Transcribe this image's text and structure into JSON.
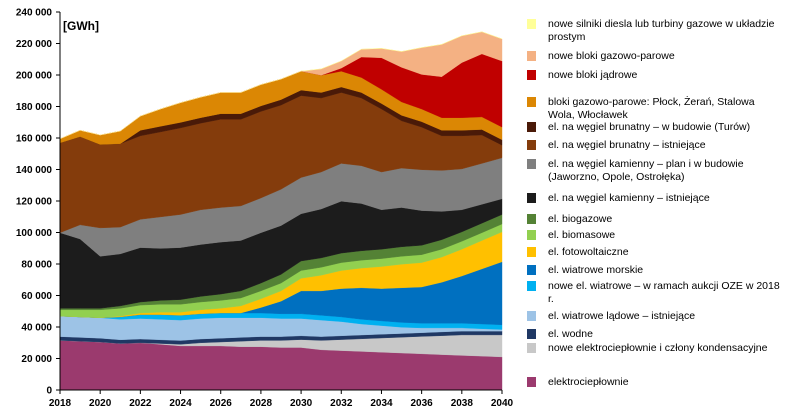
{
  "chart_data": {
    "type": "area",
    "stacked": true,
    "unit_label": "[GWh]",
    "x": [
      2018,
      2019,
      2020,
      2021,
      2022,
      2023,
      2024,
      2025,
      2026,
      2027,
      2028,
      2029,
      2030,
      2031,
      2032,
      2033,
      2034,
      2035,
      2036,
      2037,
      2038,
      2039,
      2040
    ],
    "x_ticks": [
      2018,
      2020,
      2022,
      2024,
      2026,
      2028,
      2030,
      2032,
      2034,
      2036,
      2038,
      2040
    ],
    "ylim": [
      0,
      240000
    ],
    "y_ticks": [
      0,
      20000,
      40000,
      60000,
      80000,
      100000,
      120000,
      140000,
      160000,
      180000,
      200000,
      220000,
      240000
    ],
    "y_tick_labels": [
      "0",
      "20 000",
      "40 000",
      "60 000",
      "80 000",
      "100 000",
      "120 000",
      "140 000",
      "160 000",
      "180 000",
      "200 000",
      "220 000",
      "240 000"
    ],
    "grid": false,
    "legend_position": "right",
    "series": [
      {
        "name": "elektrociepłownie",
        "color": "#9B3A6E",
        "values": [
          31500,
          31000,
          30500,
          29500,
          30000,
          29000,
          28000,
          28000,
          28000,
          27500,
          27500,
          27000,
          27000,
          25500,
          25000,
          24500,
          24000,
          23500,
          23000,
          22500,
          22000,
          21500,
          21000
        ]
      },
      {
        "name": "nowe elektrociepłownie i człony kondensacyjne",
        "color": "#C8C8C8",
        "values": [
          0,
          0,
          0,
          0,
          0,
          500,
          1000,
          2000,
          2500,
          3500,
          4000,
          4500,
          5000,
          6000,
          7000,
          8000,
          9000,
          10000,
          11000,
          12000,
          13000,
          13500,
          14000
        ]
      },
      {
        "name": "el. wodne",
        "color": "#1F3864",
        "values": [
          2400,
          2400,
          2400,
          2400,
          2400,
          2400,
          2400,
          2400,
          2400,
          2400,
          2400,
          2400,
          2400,
          2400,
          2400,
          2400,
          2400,
          2400,
          2400,
          2400,
          2400,
          2400,
          2400
        ]
      },
      {
        "name": "el. wiatrowe lądowe – istniejące",
        "color": "#9DC3E6",
        "values": [
          13000,
          13000,
          13000,
          13000,
          13000,
          13000,
          13000,
          13000,
          13000,
          12500,
          12000,
          11500,
          11000,
          10500,
          9000,
          7000,
          5500,
          4000,
          3000,
          2500,
          2000,
          1500,
          1000
        ]
      },
      {
        "name": "nowe el. wiatrowe – w ramach aukcji OZE w 2018 r.",
        "color": "#00B0F0",
        "values": [
          0,
          0,
          0,
          1500,
          2500,
          3000,
          3000,
          3000,
          3000,
          3000,
          3000,
          3000,
          3000,
          3000,
          3000,
          3000,
          3000,
          3000,
          3000,
          3000,
          3000,
          3000,
          3000
        ]
      },
      {
        "name": "el. wiatrowe morskie",
        "color": "#0070C0",
        "values": [
          0,
          0,
          0,
          0,
          0,
          0,
          0,
          0,
          0,
          0,
          3500,
          8000,
          14500,
          15500,
          18000,
          20000,
          20500,
          22000,
          23000,
          26000,
          30000,
          35000,
          40000
        ]
      },
      {
        "name": "el. fotowoltaiczne",
        "color": "#FFC000",
        "values": [
          0,
          0,
          0,
          500,
          1000,
          1500,
          2000,
          2500,
          3000,
          4500,
          5500,
          6500,
          8000,
          10000,
          11500,
          12500,
          14000,
          15000,
          15500,
          16000,
          17000,
          18000,
          19000
        ]
      },
      {
        "name": "el. biomasowe",
        "color": "#92D050",
        "values": [
          4000,
          4500,
          5000,
          5000,
          5000,
          5000,
          5000,
          5000,
          5000,
          5000,
          5000,
          5000,
          5000,
          5000,
          5000,
          5000,
          5000,
          5000,
          5000,
          5000,
          5000,
          5000,
          5000
        ]
      },
      {
        "name": "el. biogazowe",
        "color": "#548235",
        "values": [
          1000,
          1000,
          1000,
          1500,
          2000,
          2500,
          3000,
          3500,
          4000,
          4500,
          5000,
          5500,
          6000,
          6000,
          6000,
          6000,
          6000,
          6000,
          6000,
          6000,
          6000,
          6000,
          6000
        ]
      },
      {
        "name": "el. na węgiel kamienny – istniejące",
        "color": "#1C1C1C",
        "values": [
          48000,
          44000,
          33000,
          33000,
          34500,
          33000,
          33000,
          33000,
          33000,
          32000,
          32000,
          31000,
          30000,
          31000,
          33000,
          30000,
          25000,
          25000,
          22000,
          18000,
          14000,
          12000,
          10000
        ]
      },
      {
        "name": "el. na węgiel kamienny – plan i w budowie (Jaworzno, Opole, Ostrołęka)",
        "color": "#7F7F7F",
        "values": [
          0,
          9000,
          18000,
          17000,
          18000,
          20000,
          21000,
          22000,
          22000,
          22000,
          22000,
          23000,
          23000,
          23500,
          24000,
          24000,
          24000,
          25000,
          26000,
          26000,
          26000,
          26000,
          26000
        ]
      },
      {
        "name": "el. na węgiel brunatny – istniejące",
        "color": "#843C0C",
        "values": [
          57000,
          56000,
          53000,
          53000,
          53000,
          54000,
          55000,
          55000,
          56000,
          55000,
          55000,
          53500,
          52000,
          47000,
          45000,
          43000,
          40000,
          30000,
          27000,
          22000,
          21000,
          18000,
          8000
        ]
      },
      {
        "name": "el. na węgiel brunatny – w budowie (Turów)",
        "color": "#4A1A08",
        "values": [
          0,
          0,
          0,
          0,
          3500,
          3500,
          3500,
          3500,
          3500,
          3500,
          3500,
          3500,
          3500,
          3500,
          3500,
          3500,
          3500,
          3500,
          3500,
          3500,
          3500,
          3500,
          3500
        ]
      },
      {
        "name": "bloki gazowo-parowe: Płock, Żerań, Stalowa Wola, Włocławek",
        "color": "#DB8704",
        "values": [
          2600,
          4000,
          6000,
          8000,
          9000,
          11000,
          12500,
          13000,
          13500,
          13500,
          13500,
          13000,
          12000,
          11000,
          10000,
          9500,
          9000,
          8500,
          8000,
          8000,
          8000,
          8000,
          8000
        ]
      },
      {
        "name": "nowe bloki jądrowe",
        "color": "#C00000",
        "values": [
          0,
          0,
          0,
          0,
          0,
          0,
          0,
          0,
          0,
          0,
          0,
          0,
          0,
          0,
          2000,
          13000,
          20000,
          22000,
          22000,
          26000,
          35000,
          40000,
          42000
        ]
      },
      {
        "name": "nowe bloki gazowo-parowe",
        "color": "#F4B183",
        "values": [
          0,
          0,
          0,
          0,
          0,
          0,
          0,
          0,
          0,
          0,
          0,
          0,
          0,
          4000,
          4500,
          5000,
          6000,
          10000,
          17000,
          20500,
          17000,
          14000,
          14000
        ]
      },
      {
        "name": "nowe silniki diesla lub turbiny gazowe w układzie prostym",
        "color": "#FFFF99",
        "values": [
          0,
          0,
          0,
          0,
          0,
          0,
          0,
          0,
          0,
          0,
          0,
          0,
          0,
          0,
          0,
          0,
          0,
          0,
          0,
          0,
          0,
          0,
          0
        ]
      }
    ]
  }
}
